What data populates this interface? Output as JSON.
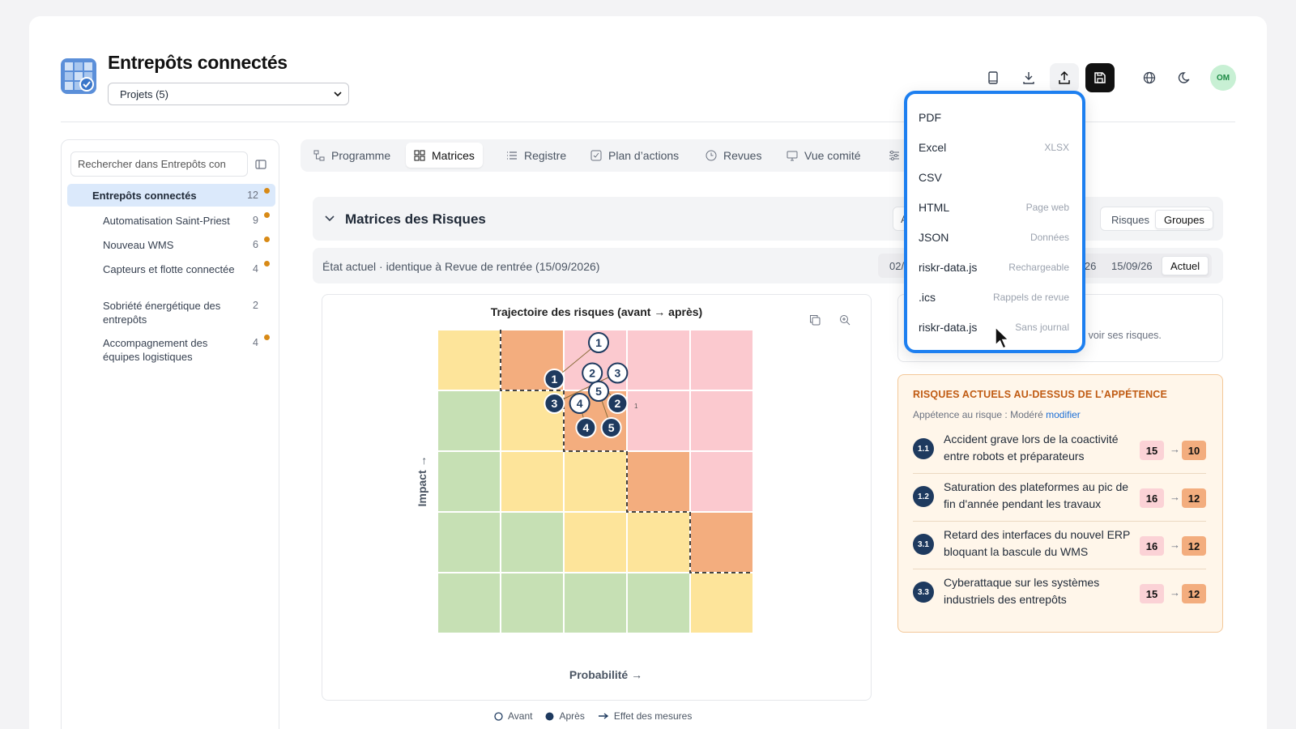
{
  "app": {
    "title": "Entrepôts connectés",
    "project_select": "Projets (5)"
  },
  "toolbar": {
    "icons": [
      "book-icon",
      "download-icon",
      "upload-icon",
      "save-icon",
      "globe-icon",
      "moon-icon"
    ],
    "avatar": "OM"
  },
  "sidebar": {
    "search_placeholder": "Rechercher dans Entrepôts con",
    "items": [
      {
        "label": "Entrepôts connectés",
        "count": "12",
        "dot": true,
        "active": true
      },
      {
        "label": "Automatisation Saint-Priest",
        "count": "9",
        "dot": true
      },
      {
        "label": "Nouveau WMS",
        "count": "6",
        "dot": true
      },
      {
        "label": "Capteurs et flotte connectée",
        "count": "4",
        "dot": true
      },
      {
        "label": "Sobriété énergétique des entrepôts",
        "count": "2",
        "dot": false
      },
      {
        "label": "Accompagnement des équipes logistiques",
        "count": "4",
        "dot": true
      }
    ]
  },
  "tabs": [
    {
      "label": "Programme",
      "icon": "program-icon"
    },
    {
      "label": "Matrices",
      "icon": "grid-icon",
      "active": true
    },
    {
      "label": "Registre",
      "icon": "list-icon"
    },
    {
      "label": "Plan d’actions",
      "icon": "checkbox-icon"
    },
    {
      "label": "Revues",
      "icon": "clock-icon"
    },
    {
      "label": "Vue comité",
      "icon": "monitor-icon"
    }
  ],
  "section": {
    "title": "Matrices des Risques",
    "partial_left": "A",
    "partial_right": "e",
    "view_toggle": [
      "Risques",
      "Groupes"
    ],
    "view_active": "Groupes"
  },
  "state_bar": {
    "text": "État actuel · identique à Revue de rentrée (15/09/2026)",
    "dates": [
      "02/1",
      "6/26",
      "15/09/26",
      "Actuel"
    ],
    "active": "Actuel"
  },
  "chart": {
    "title": "Trajectoire des risques (avant → après)",
    "xlabel": "Probabilité →",
    "ylabel": "Impact →",
    "cell_note": "1",
    "legend": {
      "before": "Avant",
      "after": "Après",
      "effect": "Effet des mesures"
    }
  },
  "colors": {
    "green": "#c6e0b4",
    "yellow": "#fde49a",
    "orange": "#f3ad7e",
    "pink": "#fbc9cf",
    "navy": "#1e3a5f",
    "accent": "#1d7ff0"
  },
  "chart_data": {
    "type": "heatmap",
    "title": "Trajectoire des risques (avant → après)",
    "xlabel": "Probabilité →",
    "ylabel": "Impact →",
    "grid_top_to_bottom": [
      [
        "yellow",
        "orange",
        "pink",
        "pink",
        "pink"
      ],
      [
        "green",
        "yellow",
        "orange",
        "pink",
        "pink"
      ],
      [
        "green",
        "yellow",
        "yellow",
        "orange",
        "pink"
      ],
      [
        "green",
        "green",
        "yellow",
        "yellow",
        "orange"
      ],
      [
        "green",
        "green",
        "green",
        "green",
        "yellow"
      ]
    ],
    "before": [
      {
        "id": "1",
        "x": 3.5,
        "y": 4.8
      },
      {
        "id": "2",
        "x": 3.4,
        "y": 4.3
      },
      {
        "id": "3",
        "x": 3.8,
        "y": 4.3
      },
      {
        "id": "4",
        "x": 3.2,
        "y": 3.8
      },
      {
        "id": "5",
        "x": 3.5,
        "y": 4.0
      }
    ],
    "after": [
      {
        "id": "1",
        "x": 2.8,
        "y": 4.2
      },
      {
        "id": "2",
        "x": 3.8,
        "y": 3.8
      },
      {
        "id": "3",
        "x": 2.8,
        "y": 3.8
      },
      {
        "id": "4",
        "x": 3.3,
        "y": 3.4
      },
      {
        "id": "5",
        "x": 3.7,
        "y": 3.4
      }
    ]
  },
  "info_card": {
    "text": "ur voir ses risques."
  },
  "appetite": {
    "title": "RISQUES ACTUELS AU-DESSUS DE L’APPÉTENCE",
    "subtitle": "Appétence au risque : Modéré",
    "modify": "modifier",
    "risks": [
      {
        "id": "1.1",
        "label": "Accident grave lors de la coactivité entre robots et préparateurs",
        "before": "15",
        "after": "10"
      },
      {
        "id": "1.2",
        "label": "Saturation des plateformes au pic de fin d'année pendant les travaux",
        "before": "16",
        "after": "12"
      },
      {
        "id": "3.1",
        "label": "Retard des interfaces du nouvel ERP bloquant la bascule du WMS",
        "before": "16",
        "after": "12"
      },
      {
        "id": "3.3",
        "label": "Cyberattaque sur les systèmes industriels des entrepôts",
        "before": "15",
        "after": "12"
      }
    ],
    "arrow": "→"
  },
  "export_menu": [
    {
      "label": "PDF",
      "hint": ""
    },
    {
      "label": "Excel",
      "hint": "XLSX"
    },
    {
      "label": "CSV",
      "hint": ""
    },
    {
      "label": "HTML",
      "hint": "Page web"
    },
    {
      "label": "JSON",
      "hint": "Données"
    },
    {
      "label": "riskr-data.js",
      "hint": "Rechargeable"
    },
    {
      "label": ".ics",
      "hint": "Rappels de revue"
    },
    {
      "label": "riskr-data.js",
      "hint": "Sans journal"
    }
  ]
}
